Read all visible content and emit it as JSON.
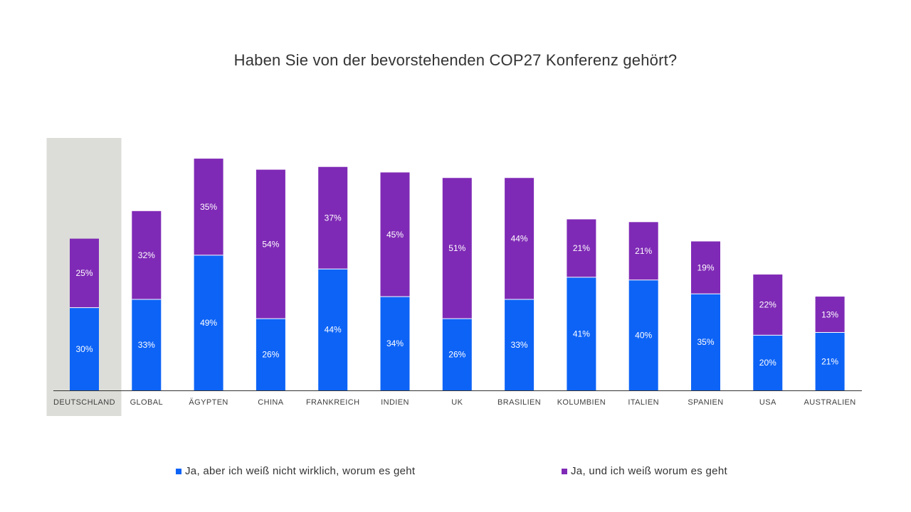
{
  "chart_data": {
    "type": "bar",
    "stacked": true,
    "title": "Haben Sie von der bevorstehenden COP27 Konferenz gehört?",
    "categories": [
      "DEUTSCHLAND",
      "GLOBAL",
      "ÄGYPTEN",
      "CHINA",
      "FRANKREICH",
      "INDIEN",
      "UK",
      "BRASILIEN",
      "KOLUMBIEN",
      "ITALIEN",
      "SPANIEN",
      "USA",
      "AUSTRALIEN"
    ],
    "highlight_category": "DEUTSCHLAND",
    "series": [
      {
        "name": "Ja, aber ich weiß nicht wirklich, worum es geht",
        "color": "#0d63f6",
        "values": [
          30,
          33,
          49,
          26,
          44,
          34,
          26,
          33,
          41,
          40,
          35,
          20,
          21
        ]
      },
      {
        "name": "Ja, und ich weiß worum es geht",
        "color": "#7f2ab6",
        "values": [
          25,
          32,
          35,
          54,
          37,
          45,
          51,
          44,
          21,
          21,
          19,
          22,
          13
        ]
      }
    ],
    "value_suffix": "%",
    "xlabel": "",
    "ylabel": "",
    "ylim": [
      0,
      100
    ],
    "grid": false,
    "legend": "bottom",
    "highlight_color": "#dcddd8",
    "axis_color": "#333333"
  }
}
